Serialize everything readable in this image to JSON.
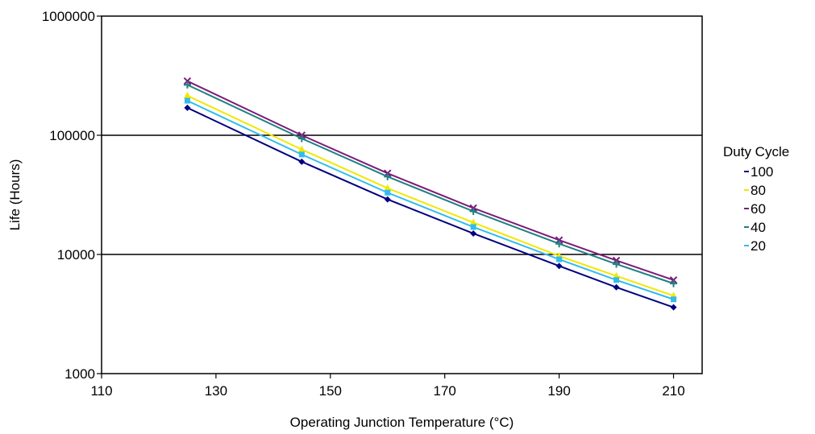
{
  "chart_data": {
    "type": "line",
    "xlabel": "Operating Junction Temperature (°C)",
    "ylabel": "Life (Hours)",
    "x_scale": "linear",
    "y_scale": "log",
    "xlim": [
      110,
      215
    ],
    "ylim": [
      1000,
      1000000
    ],
    "x_ticks": [
      110,
      130,
      150,
      170,
      190,
      210
    ],
    "y_ticks": [
      1000,
      10000,
      100000,
      1000000
    ],
    "grid": "horizontal major lines",
    "legend": {
      "title": "Duty Cycle",
      "placement": "right"
    },
    "x": [
      125,
      145,
      160,
      175,
      190,
      200,
      210
    ],
    "series": [
      {
        "name": "100",
        "color": "#000080",
        "marker": "diamond",
        "values": [
          170000,
          60000,
          29000,
          15000,
          8000,
          5300,
          3600
        ]
      },
      {
        "name": "80",
        "color": "#f0e800",
        "marker": "triangle",
        "values": [
          215000,
          76000,
          36000,
          18500,
          9700,
          6600,
          4500
        ]
      },
      {
        "name": "60",
        "color": "#7b1b7b",
        "marker": "x",
        "values": [
          285000,
          100000,
          48000,
          24500,
          13200,
          8900,
          6100
        ]
      },
      {
        "name": "40",
        "color": "#1f8080",
        "marker": "plus",
        "values": [
          265000,
          94000,
          45000,
          23000,
          12300,
          8300,
          5700
        ]
      },
      {
        "name": "20",
        "color": "#33bbee",
        "marker": "square",
        "values": [
          195000,
          69000,
          33000,
          17000,
          9100,
          6100,
          4200
        ]
      }
    ]
  }
}
